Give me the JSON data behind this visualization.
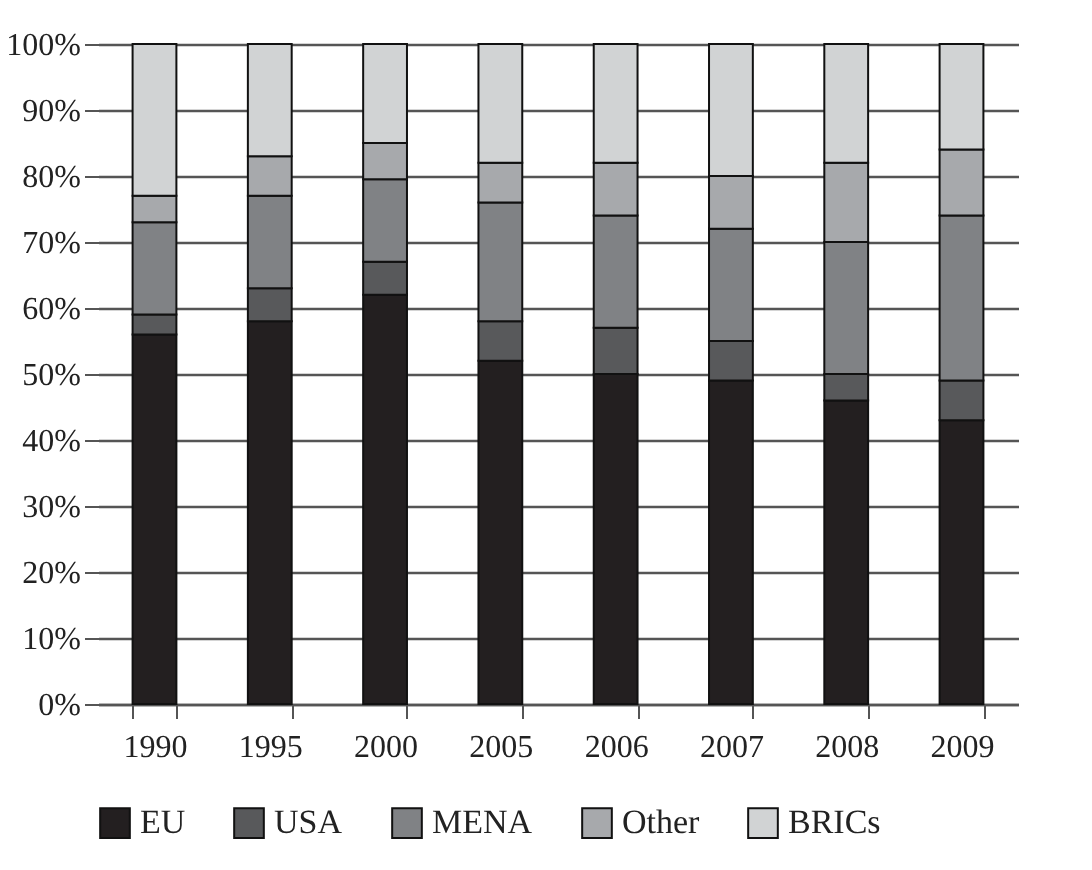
{
  "chart_data": {
    "type": "bar",
    "stacked": true,
    "categories": [
      "1990",
      "1995",
      "2000",
      "2005",
      "2006",
      "2007",
      "2008",
      "2009"
    ],
    "series": [
      {
        "name": "EU",
        "color": "#231f20",
        "values": [
          56,
          58,
          62,
          52,
          50,
          49,
          46,
          43
        ]
      },
      {
        "name": "USA",
        "color": "#58595b",
        "values": [
          3,
          5,
          5,
          6,
          7,
          6,
          4,
          6
        ]
      },
      {
        "name": "MENA",
        "color": "#808285",
        "values": [
          14,
          14,
          12.5,
          18,
          17,
          17,
          20,
          25
        ]
      },
      {
        "name": "Other",
        "color": "#a7a9ac",
        "values": [
          4,
          6,
          5.5,
          6,
          8,
          8,
          12,
          10
        ]
      },
      {
        "name": "BRICs",
        "color": "#d1d3d4",
        "values": [
          23,
          17,
          15,
          18,
          18,
          20,
          18,
          16
        ]
      }
    ],
    "ylim": [
      0,
      100
    ],
    "yticks": [
      {
        "value": 0,
        "label": "0%"
      },
      {
        "value": 10,
        "label": "10%"
      },
      {
        "value": 20,
        "label": "20%"
      },
      {
        "value": 30,
        "label": "30%"
      },
      {
        "value": 40,
        "label": "40%"
      },
      {
        "value": 50,
        "label": "50%"
      },
      {
        "value": 60,
        "label": "60%"
      },
      {
        "value": 70,
        "label": "70%"
      },
      {
        "value": 80,
        "label": "80%"
      },
      {
        "value": 90,
        "label": "90%"
      },
      {
        "value": 100,
        "label": "100%"
      }
    ],
    "grid": "y",
    "legend": "bottom"
  }
}
